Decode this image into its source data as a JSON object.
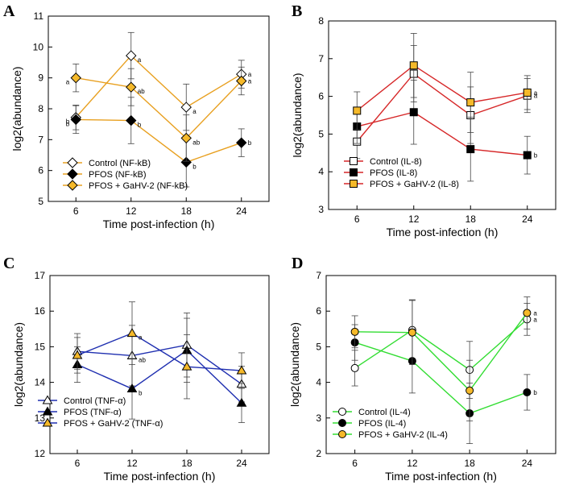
{
  "chart_data": [
    {
      "type": "line",
      "panel": "A",
      "xlabel": "Time post-infection (h)",
      "ylabel": "log2(abundance)",
      "x": [
        6,
        12,
        18,
        24
      ],
      "ylim": [
        5,
        11
      ],
      "yticks": [
        5,
        6,
        7,
        8,
        9,
        10,
        11
      ],
      "color": "#e8a020",
      "series": [
        {
          "name": "Control (NF-kB)",
          "marker": "diamond",
          "fill": "#ffffff",
          "values": [
            7.72,
            9.72,
            8.05,
            9.12
          ],
          "errors": [
            0.4,
            0.75,
            0.75,
            0.45
          ],
          "labels": [
            "b",
            "a",
            "a",
            "a"
          ]
        },
        {
          "name": "PFOS (NF-kB)",
          "marker": "diamond",
          "fill": "#000000",
          "values": [
            7.65,
            7.62,
            6.27,
            6.9
          ],
          "errors": [
            0.45,
            0.75,
            0.8,
            0.45
          ],
          "labels": [
            "b",
            "b",
            "b",
            "b"
          ]
        },
        {
          "name": "PFOS + GaHV-2 (NF-kB)",
          "marker": "diamond",
          "fill": "#f5b92a",
          "values": [
            9.0,
            8.7,
            7.05,
            8.9
          ],
          "errors": [
            0.45,
            0.6,
            0.75,
            0.45
          ],
          "labels": [
            "a",
            "ab",
            "ab",
            "a"
          ]
        }
      ]
    },
    {
      "type": "line",
      "panel": "B",
      "xlabel": "Time post-infection (h)",
      "ylabel": "log2(abundance)",
      "x": [
        6,
        12,
        18,
        24
      ],
      "ylim": [
        3,
        8
      ],
      "yticks": [
        3,
        4,
        5,
        6,
        7,
        8
      ],
      "color": "#d62728",
      "series": [
        {
          "name": "Control (IL-8)",
          "marker": "square",
          "fill": "#ffffff",
          "values": [
            4.8,
            6.6,
            5.5,
            6.02
          ],
          "errors": [
            0.45,
            0.75,
            0.75,
            0.45
          ],
          "labels": [
            "",
            "",
            "",
            "a"
          ]
        },
        {
          "name": "PFOS (IL-8)",
          "marker": "square",
          "fill": "#000000",
          "values": [
            5.2,
            5.58,
            4.6,
            4.44
          ],
          "errors": [
            0.45,
            0.85,
            0.85,
            0.5
          ],
          "labels": [
            "",
            "",
            "",
            "b"
          ]
        },
        {
          "name": "PFOS + GaHV-2 (IL-8)",
          "marker": "square",
          "fill": "#f5b92a",
          "values": [
            5.62,
            6.82,
            5.84,
            6.1
          ],
          "errors": [
            0.5,
            0.85,
            0.8,
            0.45
          ],
          "labels": [
            "",
            "",
            "",
            "a"
          ]
        }
      ]
    },
    {
      "type": "line",
      "panel": "C",
      "xlabel": "Time post-infection (h)",
      "ylabel": "log2(abundance)",
      "x": [
        6,
        12,
        18,
        24
      ],
      "ylim": [
        12,
        17
      ],
      "yticks": [
        12,
        13,
        14,
        15,
        16,
        17
      ],
      "color": "#1f2fb0",
      "series": [
        {
          "name": "Control (TNF-α)",
          "marker": "triangle",
          "fill": "#ffffff",
          "values": [
            14.87,
            14.75,
            15.05,
            13.95
          ],
          "errors": [
            0.5,
            0.85,
            0.9,
            0.5
          ],
          "labels": [
            "",
            "ab",
            "",
            ""
          ]
        },
        {
          "name": "PFOS (TNF-α)",
          "marker": "triangle",
          "fill": "#000000",
          "values": [
            14.5,
            13.82,
            14.9,
            13.42
          ],
          "errors": [
            0.5,
            0.85,
            0.9,
            0.55
          ],
          "labels": [
            "",
            "b",
            "",
            ""
          ]
        },
        {
          "name": "PFOS + GaHV-2 (TNF-α)",
          "marker": "triangle",
          "fill": "#f5b92a",
          "values": [
            14.76,
            15.38,
            14.44,
            14.33
          ],
          "errors": [
            0.5,
            0.88,
            0.9,
            0.5
          ],
          "labels": [
            "",
            "a",
            "",
            ""
          ]
        }
      ]
    },
    {
      "type": "line",
      "panel": "D",
      "xlabel": "Time post-infection (h)",
      "ylabel": "log2(abundance)",
      "x": [
        6,
        12,
        18,
        24
      ],
      "ylim": [
        2,
        7
      ],
      "yticks": [
        2,
        3,
        4,
        5,
        6,
        7
      ],
      "color": "#33dd33",
      "series": [
        {
          "name": "Control (IL-4)",
          "marker": "circle",
          "fill": "#ffffff",
          "values": [
            4.4,
            5.47,
            4.35,
            5.77
          ],
          "errors": [
            0.5,
            0.85,
            0.8,
            0.45
          ],
          "labels": [
            "",
            "",
            "",
            "a"
          ]
        },
        {
          "name": "PFOS (IL-4)",
          "marker": "circle",
          "fill": "#000000",
          "values": [
            5.12,
            4.6,
            3.13,
            3.72
          ],
          "errors": [
            0.5,
            0.9,
            0.85,
            0.5
          ],
          "labels": [
            "",
            "",
            "",
            "b"
          ]
        },
        {
          "name": "PFOS + GaHV-2 (IL-4)",
          "marker": "circle",
          "fill": "#f5b92a",
          "values": [
            5.42,
            5.4,
            3.77,
            5.95
          ],
          "errors": [
            0.45,
            0.9,
            0.85,
            0.45
          ],
          "labels": [
            "",
            "",
            "",
            "a"
          ]
        }
      ]
    }
  ]
}
